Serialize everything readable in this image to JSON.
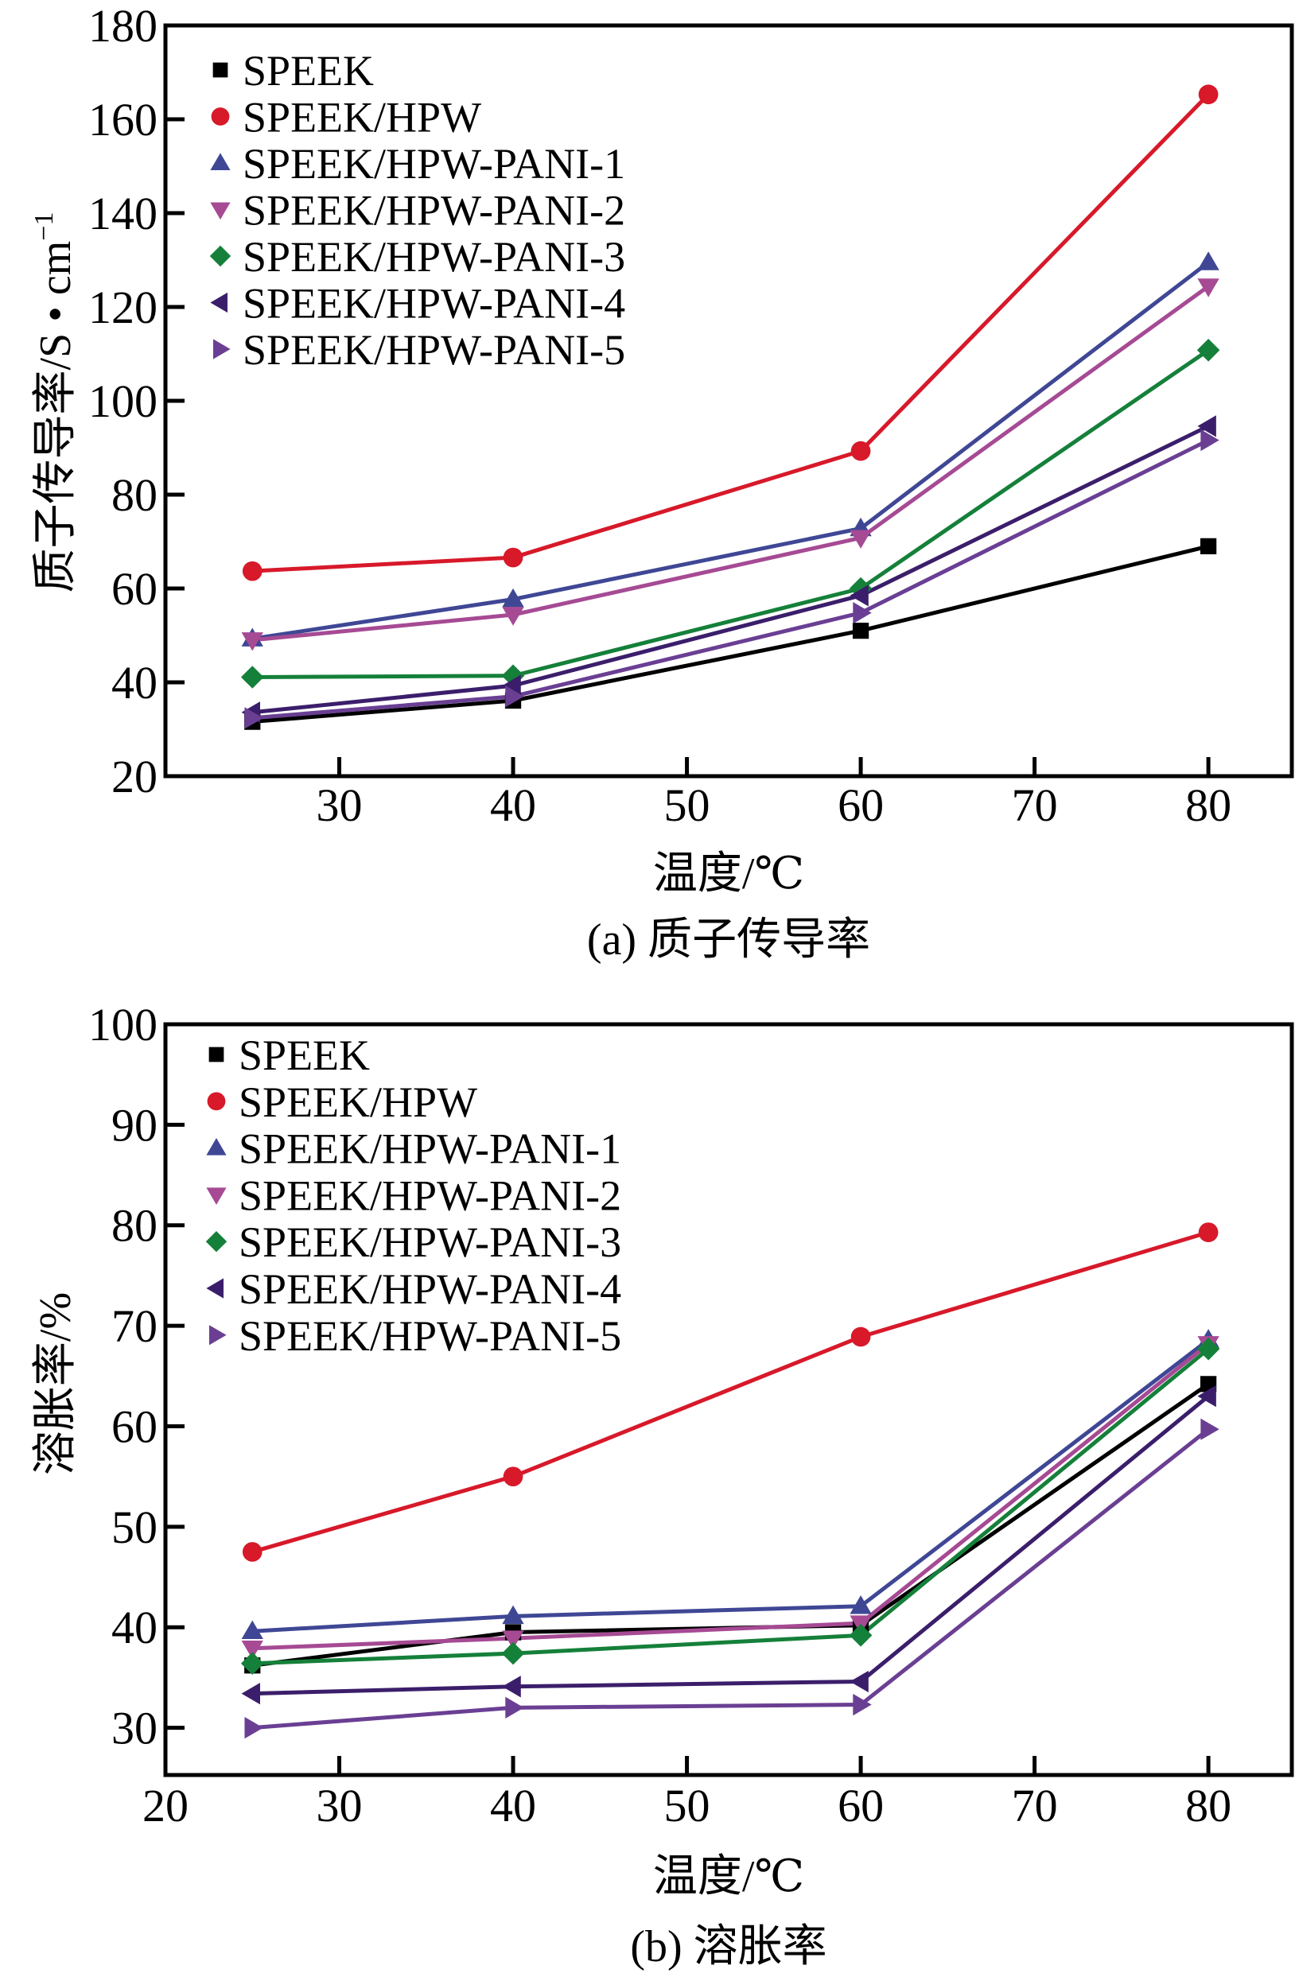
{
  "chart_data": [
    {
      "id": "a",
      "type": "line",
      "title": "",
      "caption": "(a) 质子传导率",
      "xlabel": "温度/℃",
      "ylabel": "质子传导率/S • cm",
      "ylabel_superscript": "−1",
      "xlim": [
        20,
        84.8
      ],
      "ylim": [
        20,
        180
      ],
      "xticks": [
        30,
        40,
        50,
        60,
        70,
        80
      ],
      "xtick_labels": [
        "30",
        "40",
        "50",
        "60",
        "70",
        "80"
      ],
      "yticks": [
        20,
        40,
        60,
        80,
        100,
        120,
        140,
        160,
        180
      ],
      "ytick_labels": [
        "20",
        "40",
        "60",
        "80",
        "100",
        "120",
        "140",
        "160",
        "180"
      ],
      "grid": false,
      "legend_position": "top-left",
      "x": [
        25,
        40,
        60,
        80
      ],
      "series": [
        {
          "name": "SPEEK",
          "marker": "square",
          "color": "#000000",
          "values": [
            31.6,
            36.1,
            51.0,
            69.0
          ]
        },
        {
          "name": "SPEEK/HPW",
          "marker": "circle",
          "color": "#D7192A",
          "values": [
            63.7,
            66.6,
            89.3,
            165.3
          ]
        },
        {
          "name": "SPEEK/HPW-PANI-1",
          "marker": "triangle-up",
          "color": "#3F4795",
          "values": [
            49.3,
            57.7,
            72.8,
            129.5
          ]
        },
        {
          "name": "SPEEK/HPW-PANI-2",
          "marker": "triangle-down",
          "color": "#A64A94",
          "values": [
            49.0,
            54.4,
            70.8,
            124.4
          ]
        },
        {
          "name": "SPEEK/HPW-PANI-3",
          "marker": "diamond",
          "color": "#15803A",
          "values": [
            41.1,
            41.4,
            60.0,
            110.8
          ]
        },
        {
          "name": "SPEEK/HPW-PANI-4",
          "marker": "triangle-left",
          "color": "#3B1E6B",
          "values": [
            33.6,
            39.3,
            58.5,
            94.6
          ]
        },
        {
          "name": "SPEEK/HPW-PANI-5",
          "marker": "triangle-right",
          "color": "#6A3F93",
          "values": [
            32.4,
            37.0,
            54.8,
            91.6
          ]
        }
      ]
    },
    {
      "id": "b",
      "type": "line",
      "title": "",
      "caption": "(b) 溶胀率",
      "xlabel": "温度/℃",
      "ylabel": "溶胀率/%",
      "ylabel_superscript": "",
      "xlim": [
        20,
        84.8
      ],
      "ylim": [
        25.3,
        100
      ],
      "xticks": [
        20,
        30,
        40,
        50,
        60,
        70,
        80
      ],
      "xtick_labels": [
        "20",
        "30",
        "40",
        "50",
        "60",
        "70",
        "80"
      ],
      "yticks": [
        30,
        40,
        50,
        60,
        70,
        80,
        90,
        100
      ],
      "ytick_labels": [
        "30",
        "40",
        "50",
        "60",
        "70",
        "80",
        "90",
        "100"
      ],
      "grid": false,
      "legend_position": "top-left",
      "x": [
        25,
        40,
        60,
        80
      ],
      "series": [
        {
          "name": "SPEEK",
          "marker": "square",
          "color": "#000000",
          "values": [
            36.2,
            39.5,
            40.2,
            64.2
          ]
        },
        {
          "name": "SPEEK/HPW",
          "marker": "circle",
          "color": "#D7192A",
          "values": [
            47.5,
            55.0,
            68.9,
            79.3
          ]
        },
        {
          "name": "SPEEK/HPW-PANI-1",
          "marker": "triangle-up",
          "color": "#3F4795",
          "values": [
            39.6,
            41.1,
            42.1,
            68.6
          ]
        },
        {
          "name": "SPEEK/HPW-PANI-2",
          "marker": "triangle-down",
          "color": "#A64A94",
          "values": [
            37.9,
            38.9,
            40.4,
            68.2
          ]
        },
        {
          "name": "SPEEK/HPW-PANI-3",
          "marker": "diamond",
          "color": "#15803A",
          "values": [
            36.4,
            37.4,
            39.2,
            67.7
          ]
        },
        {
          "name": "SPEEK/HPW-PANI-4",
          "marker": "triangle-left",
          "color": "#3B1E6B",
          "values": [
            33.4,
            34.1,
            34.6,
            63.0
          ]
        },
        {
          "name": "SPEEK/HPW-PANI-5",
          "marker": "triangle-right",
          "color": "#6A3F93",
          "values": [
            30.0,
            32.0,
            32.3,
            59.7
          ]
        }
      ]
    }
  ]
}
